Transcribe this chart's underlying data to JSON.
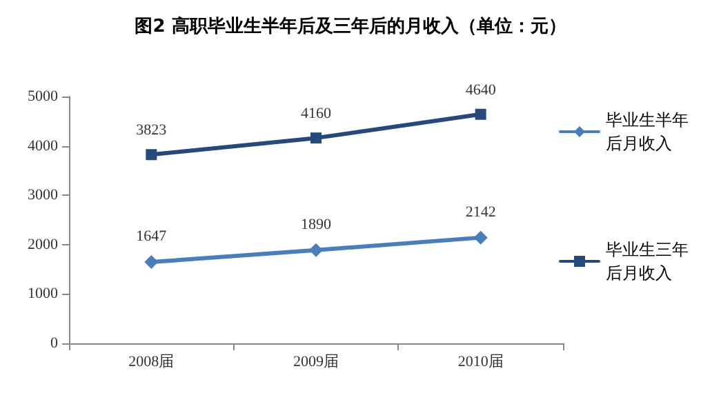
{
  "chart_data": {
    "type": "line",
    "title": "图2 高职毕业生半年后及三年后的月收入（单位：元）",
    "categories": [
      "2008届",
      "2009届",
      "2010届"
    ],
    "series": [
      {
        "name": "毕业生半年后月收入",
        "color": "#4a7ebb",
        "marker": "diamond",
        "values": [
          1647,
          1890,
          2142
        ]
      },
      {
        "name": "毕业生三年后月收入",
        "color": "#254a7a",
        "marker": "square",
        "values": [
          3823,
          4160,
          4640
        ]
      }
    ],
    "ylim": [
      0,
      5000
    ],
    "yticks": [
      0,
      1000,
      2000,
      3000,
      4000,
      5000
    ],
    "grid": false,
    "legend": "right",
    "data_labels": true
  }
}
